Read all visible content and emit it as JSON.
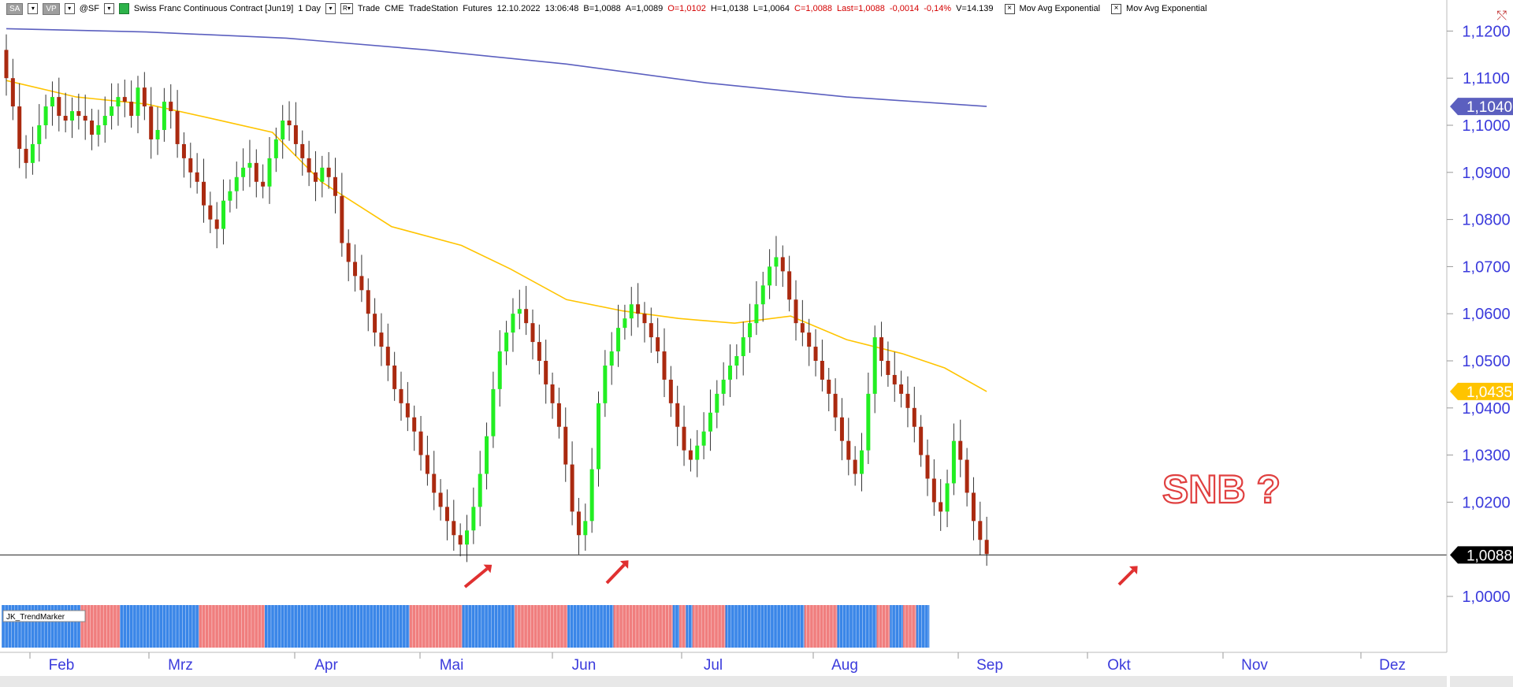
{
  "toolbar": {
    "btn_sa": "SA",
    "btn_vp": "VP",
    "symbol": "@SF",
    "title": "Swiss Franc Continuous Contract [Jun19]",
    "interval": "1 Day",
    "r_label": "R",
    "trade_label": "Trade",
    "exchange": "CME",
    "provider": "TradeStation",
    "type": "Futures",
    "date": "12.10.2022",
    "time": "13:06:48",
    "bid": "B=1,0088",
    "ask": "A=1,0089",
    "open": "O=1,0102",
    "high": "H=1,0138",
    "low": "L=1,0064",
    "close": "C=1,0088",
    "last": "Last=1,0088",
    "change": "-0,0014",
    "change_pct": "-0,14%",
    "volume": "V=14.139",
    "study1": "Mov Avg Exponential",
    "study2": "Mov Avg Exponential"
  },
  "indicator": {
    "name": "JK_TrendMarker"
  },
  "annotation": {
    "text": "SNB ?"
  },
  "colors": {
    "up_candle": "#22ee22",
    "down_candle": "#aa2a10",
    "ema_slow": "#5b5fbf",
    "ema_fast": "#ffc400",
    "axis_text": "#3b3bdc",
    "trend_up": "#3a86e8",
    "trend_down": "#f07e7e",
    "arrow": "#e03030",
    "snb_text": "#e04040"
  },
  "chart_data": {
    "type": "candlestick",
    "y_axis_ticks": [
      "1,1200",
      "1,1100",
      "1,1000",
      "1,0900",
      "1,0800",
      "1,0700",
      "1,0600",
      "1,0500",
      "1,0400",
      "1,0300",
      "1,0200",
      "1,0000"
    ],
    "ylim": [
      0.995,
      1.125
    ],
    "x_axis_months": [
      "Feb",
      "Mrz",
      "Apr",
      "Mai",
      "Jun",
      "Jul",
      "Aug",
      "Sep",
      "Okt",
      "Nov",
      "Dez"
    ],
    "price_markers": [
      {
        "label": "1,1040",
        "value": 1.104,
        "series": "ema_slow"
      },
      {
        "label": "1,0435",
        "value": 1.0435,
        "series": "ema_fast"
      },
      {
        "label": "1,0088",
        "value": 1.0088,
        "series": "last"
      }
    ],
    "last_price_line": 1.0088,
    "ema_slow": [
      [
        0,
        1.1205
      ],
      [
        20,
        1.1198
      ],
      [
        40,
        1.1185
      ],
      [
        60,
        1.116
      ],
      [
        80,
        1.113
      ],
      [
        100,
        1.109
      ],
      [
        120,
        1.106
      ],
      [
        140,
        1.104
      ]
    ],
    "ema_fast": [
      [
        0,
        1.1095
      ],
      [
        10,
        1.106
      ],
      [
        20,
        1.1045
      ],
      [
        30,
        1.1012
      ],
      [
        38,
        1.0985
      ],
      [
        45,
        1.088
      ],
      [
        55,
        1.0785
      ],
      [
        65,
        1.0745
      ],
      [
        72,
        1.0695
      ],
      [
        80,
        1.063
      ],
      [
        88,
        1.0606
      ],
      [
        96,
        1.059
      ],
      [
        104,
        1.058
      ],
      [
        112,
        1.0595
      ],
      [
        120,
        1.0545
      ],
      [
        128,
        1.0515
      ],
      [
        134,
        1.0485
      ],
      [
        140,
        1.0435
      ]
    ],
    "candles": [],
    "trend_marker_segments": [
      {
        "dir": "up",
        "from": 0,
        "to": 12
      },
      {
        "dir": "down",
        "from": 12,
        "to": 18
      },
      {
        "dir": "up",
        "from": 18,
        "to": 30
      },
      {
        "dir": "down",
        "from": 30,
        "to": 40
      },
      {
        "dir": "up",
        "from": 40,
        "to": 62
      },
      {
        "dir": "down",
        "from": 62,
        "to": 70
      },
      {
        "dir": "up",
        "from": 70,
        "to": 78
      },
      {
        "dir": "down",
        "from": 78,
        "to": 86
      },
      {
        "dir": "up",
        "from": 86,
        "to": 93
      },
      {
        "dir": "down",
        "from": 93,
        "to": 102
      },
      {
        "dir": "up",
        "from": 102,
        "to": 103
      },
      {
        "dir": "down",
        "from": 103,
        "to": 104
      },
      {
        "dir": "up",
        "from": 104,
        "to": 105
      },
      {
        "dir": "down",
        "from": 105,
        "to": 110
      },
      {
        "dir": "up",
        "from": 110,
        "to": 122
      },
      {
        "dir": "down",
        "from": 122,
        "to": 127
      },
      {
        "dir": "up",
        "from": 127,
        "to": 133
      },
      {
        "dir": "down",
        "from": 133,
        "to": 135
      },
      {
        "dir": "up",
        "from": 135,
        "to": 137
      },
      {
        "dir": "down",
        "from": 137,
        "to": 139
      },
      {
        "dir": "up",
        "from": 139,
        "to": 141
      }
    ]
  }
}
